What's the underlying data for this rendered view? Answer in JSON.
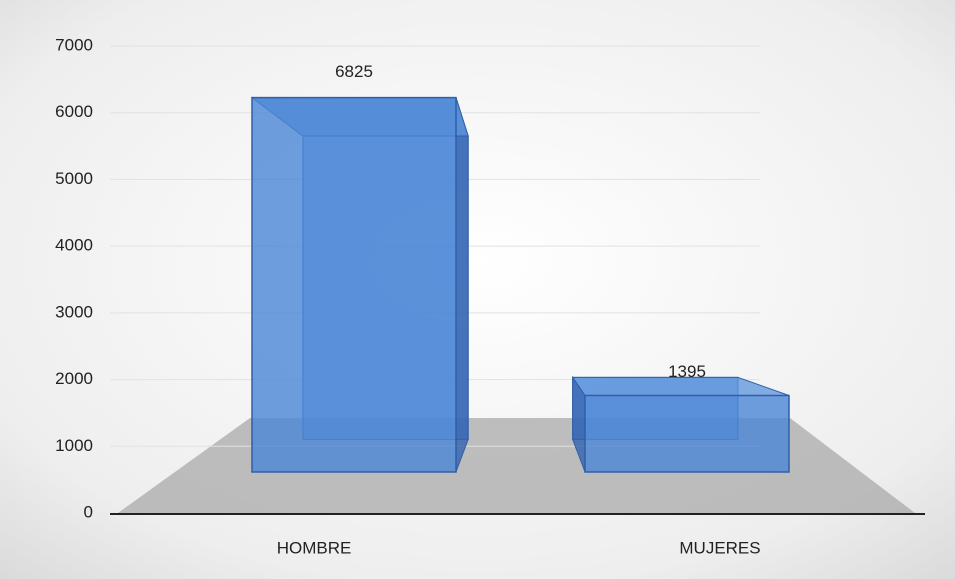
{
  "chart_data": {
    "type": "bar3d",
    "categories": [
      "HOMBRE",
      "MUJERES"
    ],
    "values": [
      6825,
      1395
    ],
    "color": "#4a86d6",
    "ylim": [
      0,
      7000
    ],
    "yticks": [
      0,
      1000,
      2000,
      3000,
      4000,
      5000,
      6000,
      7000
    ],
    "grid": true
  }
}
